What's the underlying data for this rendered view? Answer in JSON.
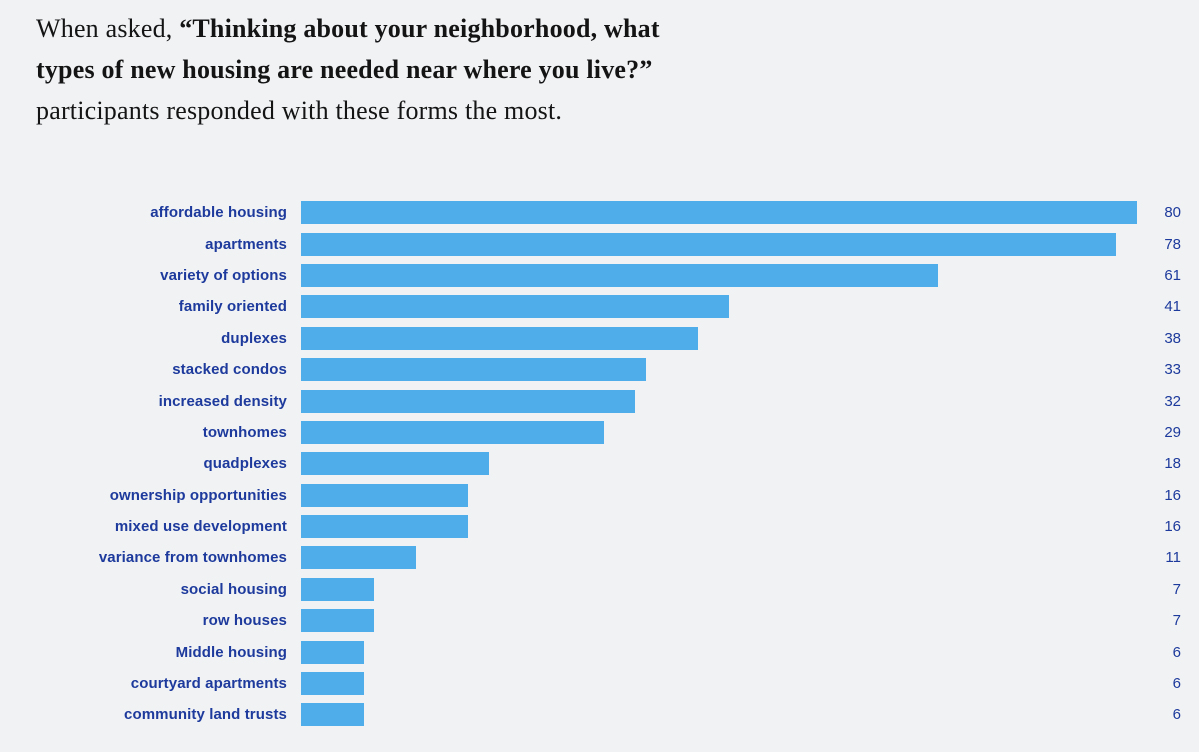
{
  "page": {
    "background_color": "#f0f2f4"
  },
  "title": {
    "line1_prefix": "When asked, ",
    "line1_bold": "“Thinking about your neighborhood, what",
    "line2_bold": "types of new housing are needed near where you live?”",
    "line3": "participants responded with these forms the most.",
    "text_color": "#141414"
  },
  "chart_data": {
    "type": "bar",
    "orientation": "horizontal",
    "title": "",
    "xlabel": "",
    "ylabel": "",
    "grid": false,
    "legend": false,
    "value_labels_position": "right",
    "categories": [
      "affordable housing",
      "apartments",
      "variety of options",
      "family oriented",
      "duplexes",
      "stacked condos",
      "increased density",
      "townhomes",
      "quadplexes",
      "ownership opportunities",
      "mixed use development",
      "variance from townhomes",
      "social housing",
      "row houses",
      "Middle housing",
      "courtyard apartments",
      "community land trusts"
    ],
    "values": [
      80,
      78,
      61,
      41,
      38,
      33,
      32,
      29,
      18,
      16,
      16,
      11,
      7,
      7,
      6,
      6,
      6
    ],
    "max_value": 80,
    "bar_color": "#4fade9",
    "label_color": "#1d3a9c",
    "value_color": "#1d3a9c"
  }
}
